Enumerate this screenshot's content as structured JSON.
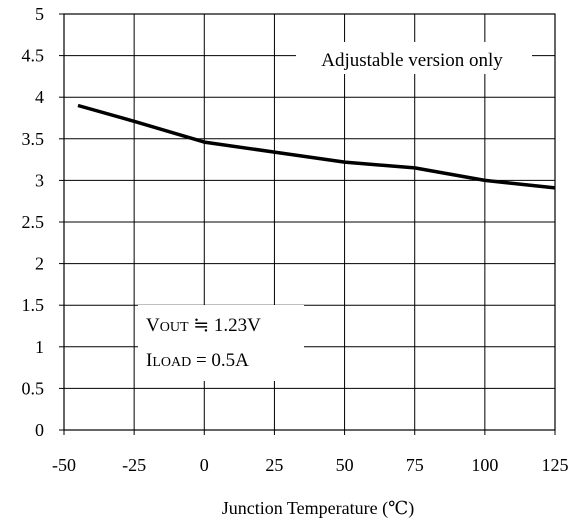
{
  "chart_data": {
    "type": "line",
    "title": "",
    "xlabel": "Junction Temperature (℃)",
    "ylabel": "",
    "xlim": [
      -50,
      125
    ],
    "ylim": [
      0,
      5
    ],
    "x_ticks": [
      -50,
      -25,
      0,
      25,
      50,
      75,
      100,
      125
    ],
    "y_ticks": [
      0,
      0.5,
      1,
      1.5,
      2,
      2.5,
      3,
      3.5,
      4,
      4.5,
      5
    ],
    "x_tick_labels": [
      "-50",
      "-25",
      "0",
      "25",
      "50",
      "75",
      "100",
      "125"
    ],
    "y_tick_labels": [
      "0",
      "0.5",
      "1",
      "1.5",
      "2",
      "2.5",
      "3",
      "3.5",
      "4",
      "4.5",
      "5"
    ],
    "grid": true,
    "series": [
      {
        "x": [
          -45,
          -25,
          0,
          25,
          50,
          75,
          100,
          125
        ],
        "y": [
          3.9,
          3.71,
          3.46,
          3.34,
          3.22,
          3.15,
          3.0,
          2.91
        ],
        "color": "#000000"
      }
    ],
    "annotations": {
      "version_note": "Adjustable version only",
      "vout": {
        "main": "V",
        "sub": "OUT",
        "rest": " ≒ 1.23V"
      },
      "iload": {
        "main": "I",
        "sub": "LOAD",
        "rest": " = 0.5A"
      }
    }
  }
}
